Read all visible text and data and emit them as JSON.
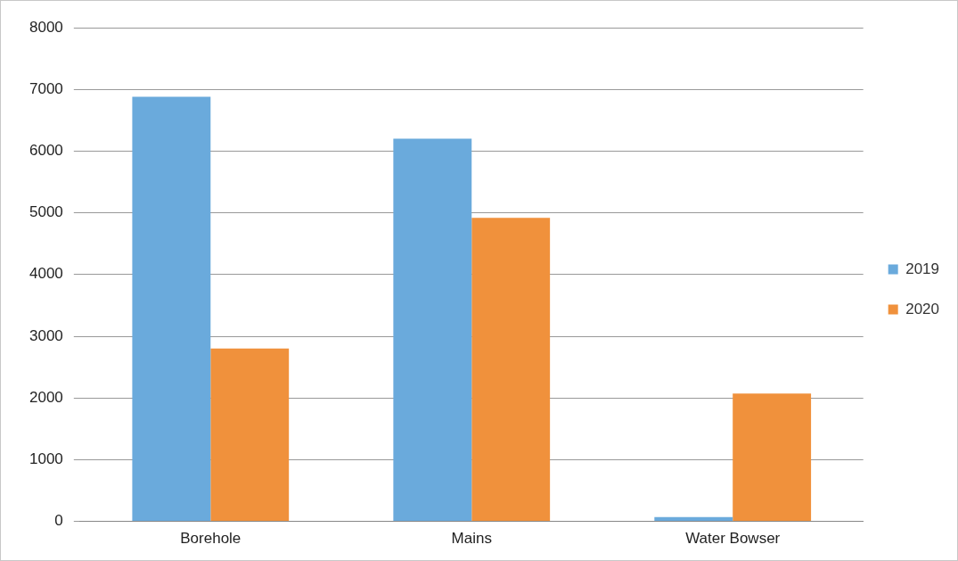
{
  "chart_data": {
    "type": "bar",
    "categories": [
      "Borehole",
      "Mains",
      "Water Bowser"
    ],
    "series": [
      {
        "name": "2019",
        "color": "#6aaadc",
        "values": [
          6880,
          6200,
          70
        ]
      },
      {
        "name": "2020",
        "color": "#f0913c",
        "values": [
          2800,
          4920,
          2070
        ]
      }
    ],
    "ylim": [
      0,
      8000
    ],
    "yticks": [
      0,
      1000,
      2000,
      3000,
      4000,
      5000,
      6000,
      7000,
      8000
    ],
    "grid": "y",
    "legend": "right"
  }
}
